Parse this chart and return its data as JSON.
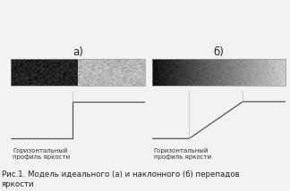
{
  "title_a": "а)",
  "title_b": "б)",
  "label_a": "Горизонтальный\nпрофиль яркости",
  "label_b": "Горизонтальный\nпрофиль яркости",
  "caption": "Рис.1. Модель идеального (а) и наклонного (б) перепадов\nяркости",
  "bg_color": "#f2f2f2",
  "line_color": "#555555",
  "guide_color": "#bbbbbb",
  "line_width": 0.9,
  "label_fontsize": 5.0,
  "title_fontsize": 8.5,
  "caption_fontsize": 6.2
}
